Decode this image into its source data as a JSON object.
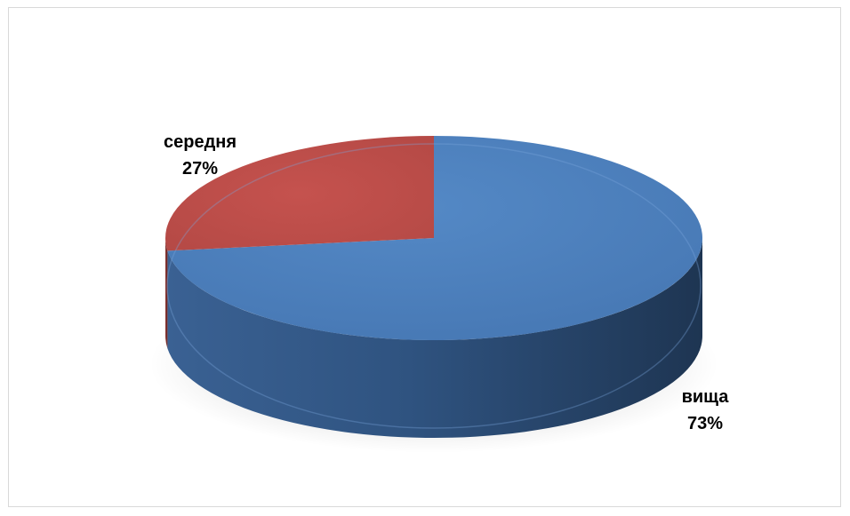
{
  "chart_data": {
    "type": "pie",
    "style": "3d",
    "categories": [
      "вища",
      "середня"
    ],
    "values": [
      73,
      27
    ],
    "percent_labels": [
      "73%",
      "27%"
    ],
    "colors": [
      "#4f81bd",
      "#c0504d"
    ],
    "side_colors": [
      "#2d4e75",
      "#7b2f2d"
    ],
    "legend": "none",
    "title": ""
  }
}
